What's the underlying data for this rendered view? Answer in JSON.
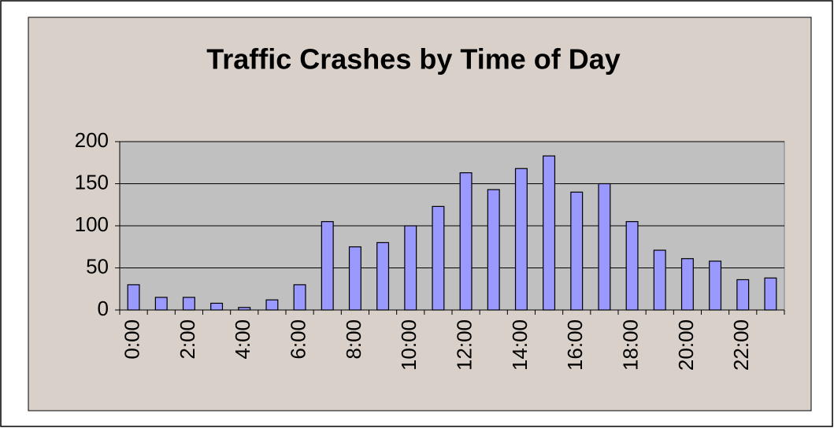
{
  "chart_data": {
    "type": "bar",
    "title": "Traffic Crashes by Time of Day",
    "categories": [
      "0:00",
      null,
      "2:00",
      null,
      "4:00",
      null,
      "6:00",
      null,
      "8:00",
      null,
      "10:00",
      null,
      "12:00",
      null,
      "14:00",
      null,
      "16:00",
      null,
      "18:00",
      null,
      "20:00",
      null,
      "22:00",
      null
    ],
    "values": [
      30,
      15,
      15,
      8,
      3,
      12,
      30,
      105,
      75,
      80,
      100,
      123,
      163,
      143,
      168,
      183,
      140,
      150,
      105,
      71,
      61,
      58,
      36,
      38
    ],
    "color": "#9999ff",
    "ylim": [
      0,
      200
    ],
    "yticks": [
      0,
      50,
      100,
      150,
      200
    ],
    "grid": true
  }
}
